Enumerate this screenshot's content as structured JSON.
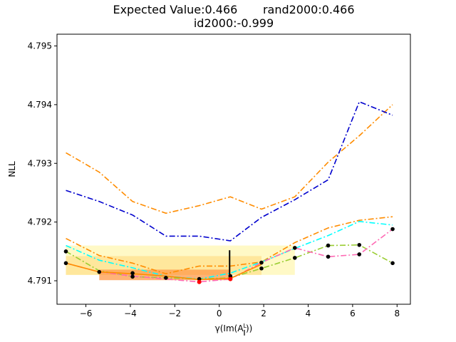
{
  "title_line1": "Expected Value:0.466       rand2000:0.466",
  "title_line2": "id2000:-0.999",
  "chart_data": {
    "type": "line",
    "ylabel": "NLL",
    "xlabel_parts": [
      "γ(Im(A",
      "L",
      "∥",
      "))"
    ],
    "xlim": [
      -7.3,
      8.6
    ],
    "ylim": [
      4.7906,
      4.7952
    ],
    "xticks": [
      -6,
      -4,
      -2,
      0,
      2,
      4,
      6,
      8
    ],
    "xtick_labels": [
      "−6",
      "−4",
      "−2",
      "0",
      "2",
      "4",
      "6",
      "8"
    ],
    "yticks": [
      4.791,
      4.792,
      4.793,
      4.794,
      4.795
    ],
    "ytick_labels": [
      "4.791",
      "4.792",
      "4.793",
      "4.794",
      "4.795"
    ],
    "series": [
      {
        "color": "#ff8c00",
        "style": "dashdot",
        "x": [
          -6.9,
          -5.4,
          -3.9,
          -2.4,
          -0.9,
          0.5,
          1.9,
          3.4,
          4.9,
          6.3,
          7.8
        ],
        "y": [
          4.79318,
          4.79285,
          4.79235,
          4.79215,
          4.79228,
          4.79243,
          4.79222,
          4.79243,
          4.79302,
          4.79347,
          4.794
        ]
      },
      {
        "color": "#0000cd",
        "style": "dashdot",
        "x": [
          -6.9,
          -5.4,
          -3.9,
          -2.4,
          -0.9,
          0.5,
          1.9,
          3.4,
          4.9,
          6.3,
          7.8
        ],
        "y": [
          4.79254,
          4.79235,
          4.79212,
          4.79176,
          4.79176,
          4.79168,
          4.79208,
          4.79238,
          4.79272,
          4.79405,
          4.79382
        ]
      },
      {
        "color": "#ff8c00",
        "style": "dashdot",
        "x": [
          -6.9,
          -5.4,
          -3.9,
          -2.4,
          -0.9,
          0.5,
          1.9,
          3.4,
          4.9,
          6.3,
          7.8
        ],
        "y": [
          4.79172,
          4.79143,
          4.7913,
          4.79112,
          4.79125,
          4.79125,
          4.79132,
          4.79165,
          4.7919,
          4.79203,
          4.79209
        ]
      },
      {
        "color": "#00ffff",
        "style": "dashdot",
        "x": [
          -6.9,
          -5.4,
          -3.9,
          -2.4,
          -0.9,
          0.5,
          1.9,
          3.4,
          4.9,
          6.3,
          7.8
        ],
        "y": [
          4.7916,
          4.79135,
          4.79122,
          4.79108,
          4.79103,
          4.79113,
          4.79132,
          4.79155,
          4.79177,
          4.79201,
          4.79195
        ]
      },
      {
        "color": "#9acd32",
        "style": "dashdot",
        "x": [
          -6.9,
          -5.4,
          -3.9,
          -2.4,
          -0.9,
          0.5,
          1.9,
          3.4,
          4.9,
          6.3,
          7.8
        ],
        "y": [
          4.7915,
          4.79117,
          4.79107,
          4.79105,
          4.79103,
          4.79105,
          4.79121,
          4.79139,
          4.7916,
          4.79161,
          4.7913
        ]
      },
      {
        "color": "#ff69b4",
        "style": "dashdot",
        "x": [
          -6.9,
          -5.4,
          -3.9,
          -2.4,
          -0.9,
          0.5,
          1.9,
          3.4,
          4.9,
          6.3,
          7.8
        ],
        "y": [
          4.7913,
          4.79115,
          4.79108,
          4.79103,
          4.79098,
          4.79103,
          4.79131,
          4.79156,
          4.79141,
          4.79145,
          4.79188
        ]
      },
      {
        "color": "#ff8c00",
        "style": "solid",
        "x": [
          -6.9,
          -5.4,
          -3.9,
          -2.4,
          -0.9,
          0.5,
          1.9
        ],
        "y": [
          4.7913,
          4.79115,
          4.79112,
          4.79108,
          4.79102,
          4.79104,
          4.79128
        ]
      }
    ],
    "bands": [
      {
        "color": "#fff8c0",
        "alpha": 0.9,
        "x": [
          -6.9,
          3.4
        ],
        "y": [
          4.7911,
          4.7916
        ]
      },
      {
        "color": "#ffe08a",
        "alpha": 0.7,
        "x": [
          -6.9,
          1.9
        ],
        "y": [
          4.7911,
          4.79142
        ]
      },
      {
        "color": "#ff9a4a",
        "alpha": 0.75,
        "x": [
          -5.4,
          0.5
        ],
        "y": [
          4.79101,
          4.79119
        ]
      }
    ],
    "points_black": {
      "x": [
        -6.9,
        -6.9,
        -5.4,
        -3.9,
        -3.9,
        -2.4,
        -0.9,
        0.5,
        1.9,
        1.9,
        3.4,
        3.4,
        4.9,
        4.9,
        6.3,
        6.3,
        7.8,
        7.8
      ],
      "y": [
        4.7915,
        4.7913,
        4.79115,
        4.79113,
        4.79107,
        4.79105,
        4.79103,
        4.79108,
        4.79121,
        4.79131,
        4.79139,
        4.79156,
        4.79141,
        4.7916,
        4.79145,
        4.79161,
        4.79188,
        4.7913
      ]
    },
    "points_red": {
      "x": [
        -0.9,
        0.5
      ],
      "y": [
        4.79098,
        4.79103
      ]
    },
    "errorbar": {
      "x": 0.466,
      "y_low": 4.79103,
      "y_high": 4.79152
    }
  }
}
